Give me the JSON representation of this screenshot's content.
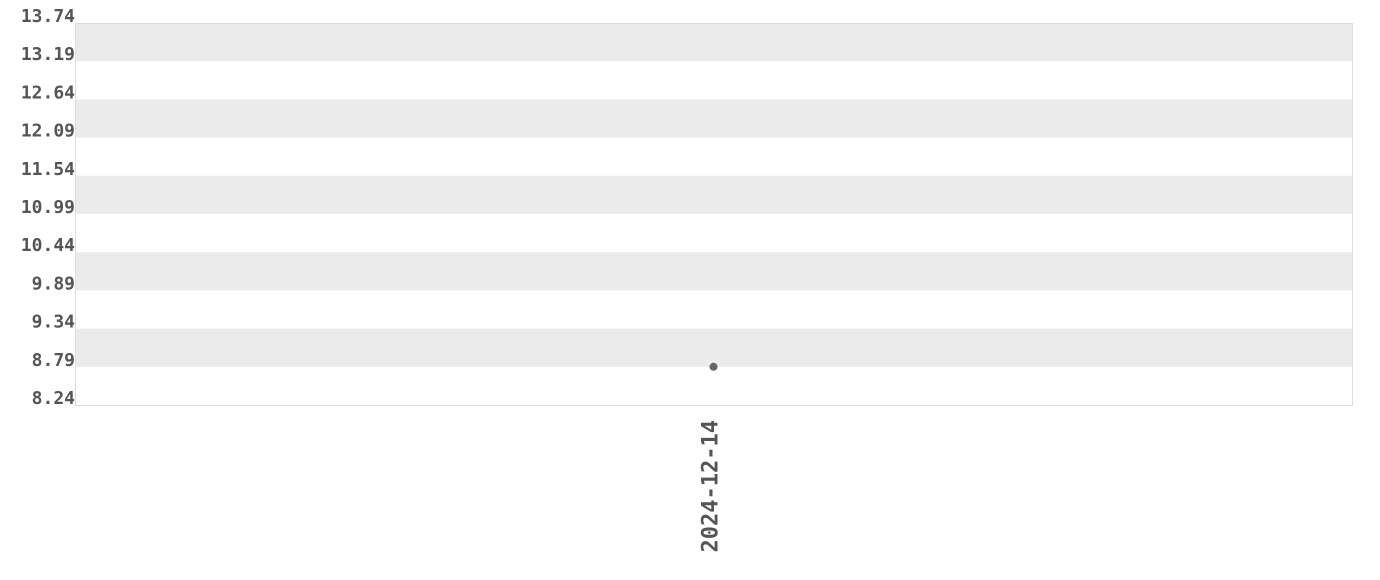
{
  "chart_data": {
    "type": "scatter",
    "title": "",
    "xlabel": "",
    "ylabel": "",
    "x": [
      "2024-12-14"
    ],
    "values": [
      8.79
    ],
    "ylim": [
      8.24,
      13.74
    ],
    "yticks": [
      "13.74",
      "13.19",
      "12.64",
      "12.09",
      "11.54",
      "10.99",
      "10.44",
      "9.89",
      "9.34",
      "8.79",
      "8.24"
    ],
    "xticks": [
      "2024-12-14"
    ],
    "grid": "alternating horizontal bands",
    "colors": {
      "band": "#ebebeb",
      "point": "#666666",
      "text": "#555555",
      "border": "#dddddd"
    }
  }
}
